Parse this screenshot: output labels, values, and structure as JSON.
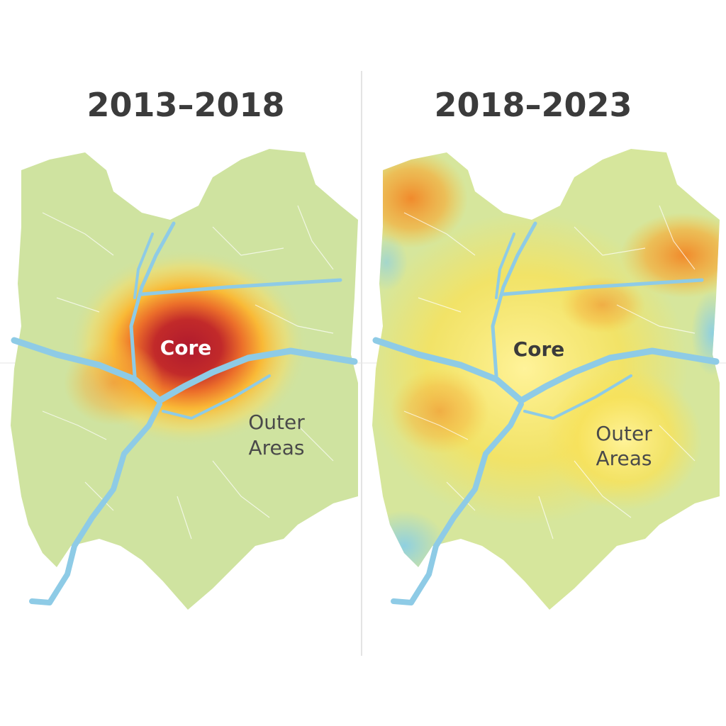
{
  "panels": [
    {
      "title": "2013–2018",
      "labels": {
        "core": "Core",
        "outer": [
          "Outer",
          "Areas"
        ]
      }
    },
    {
      "title": "2018–2023",
      "labels": {
        "core": "Core",
        "outer": [
          "Outer",
          "Areas"
        ]
      }
    }
  ]
}
